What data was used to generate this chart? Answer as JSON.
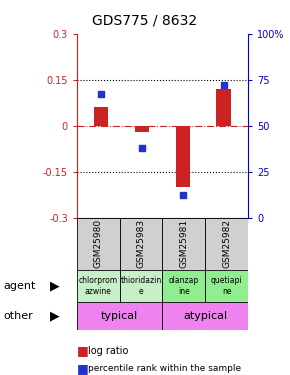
{
  "title": "GDS775 / 8632",
  "samples": [
    "GSM25980",
    "GSM25983",
    "GSM25981",
    "GSM25982"
  ],
  "log_ratios": [
    0.06,
    -0.02,
    -0.2,
    0.12
  ],
  "percentile_ranks": [
    67,
    38,
    12,
    72
  ],
  "ylim_left": [
    -0.3,
    0.3
  ],
  "ylim_right": [
    0,
    100
  ],
  "yticks_left": [
    -0.3,
    -0.15,
    0,
    0.15,
    0.3
  ],
  "yticks_right": [
    0,
    25,
    50,
    75,
    100
  ],
  "dotted_lines": [
    -0.15,
    0.15
  ],
  "agent_names": [
    "chlorprom\nazwine",
    "thioridazin\ne",
    "olanzap\nine",
    "quetiapi\nne"
  ],
  "agent_colors": [
    "#c8f0c8",
    "#c8f0c8",
    "#90ee90",
    "#90ee90"
  ],
  "other_color": "#ee82ee",
  "bar_color": "#cc2222",
  "dot_color": "#2233cc",
  "bar_width": 0.35,
  "left_tick_color": "#cc2222",
  "right_tick_color": "#0000cc"
}
